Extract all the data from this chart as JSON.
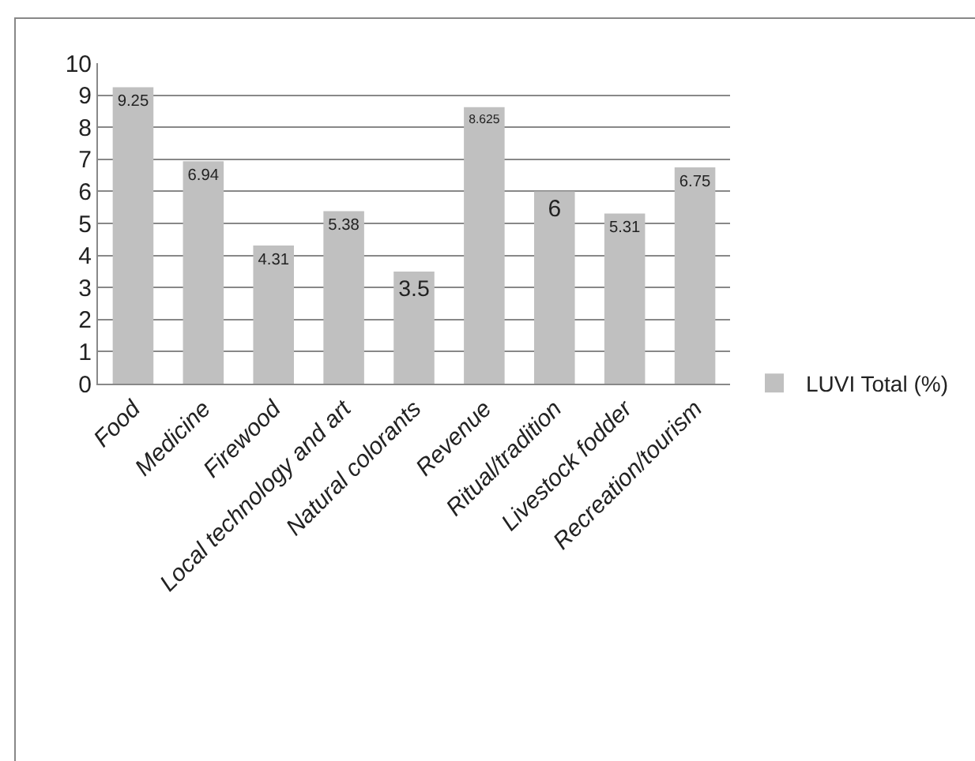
{
  "chart_data": {
    "type": "bar",
    "categories": [
      "Food",
      "Medicine",
      "Firewood",
      "Local technology and art",
      "Natural colorants",
      "Revenue",
      "Ritual/tradition",
      "Livestock fodder",
      "Recreation/tourism"
    ],
    "series": [
      {
        "name": "LUVI Total (%)",
        "color": "#c0c0c0",
        "values": [
          9.25,
          6.94,
          4.31,
          5.38,
          3.5,
          8.625,
          6,
          5.31,
          6.75
        ]
      }
    ],
    "ylim": [
      0,
      10
    ],
    "yticks": [
      0,
      1,
      2,
      3,
      4,
      5,
      6,
      7,
      8,
      9,
      10
    ],
    "grid": "y",
    "legend": "right",
    "data_labels": true
  }
}
